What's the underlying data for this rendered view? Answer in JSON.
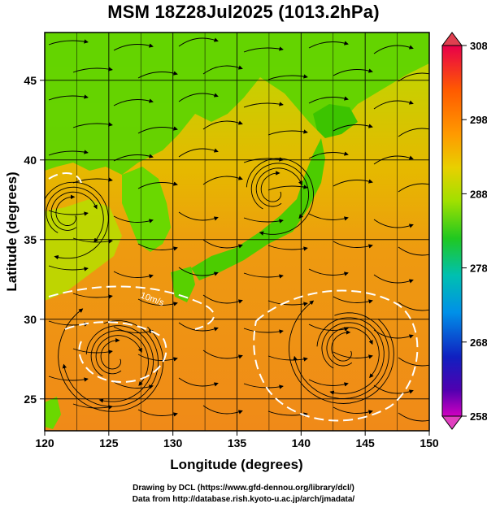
{
  "title": "MSM 18Z28Jul2025 (1013.2hPa)",
  "map": {
    "x_axis": {
      "label": "Longitude (degrees)",
      "range": [
        120,
        150
      ],
      "ticks": [
        "120",
        "125",
        "130",
        "135",
        "140",
        "145",
        "150"
      ]
    },
    "y_axis": {
      "label": "Latitude  (degrees)",
      "range": [
        23,
        48
      ],
      "ticks": [
        "25",
        "30",
        "35",
        "40",
        "45"
      ]
    },
    "grid": true,
    "field": "temperature",
    "overlay": "streamlines",
    "contour_label": "10m/s",
    "vortex_centers": [
      {
        "lon": 125.5,
        "lat": 27.5
      },
      {
        "lon": 143.5,
        "lat": 28.0
      },
      {
        "lon": 122.0,
        "lat": 36.5
      },
      {
        "lon": 138.0,
        "lat": 38.0
      }
    ]
  },
  "colorbar": {
    "min": 258,
    "max": 308,
    "tick_labels": [
      "308",
      "298",
      "288",
      "278",
      "268",
      "258"
    ],
    "colors": [
      "#e8004a",
      "#ff7a00",
      "#f0b800",
      "#c8e000",
      "#40d000",
      "#00c060",
      "#00c8c8",
      "#0070e0",
      "#2000c0",
      "#a000c0"
    ]
  },
  "credits": {
    "line1": "Drawing by DCL (https://www.gfd-dennou.org/library/dcl/)",
    "line2": "Data from http://database.rish.kyoto-u.ac.jp/arch/jmadata/"
  }
}
